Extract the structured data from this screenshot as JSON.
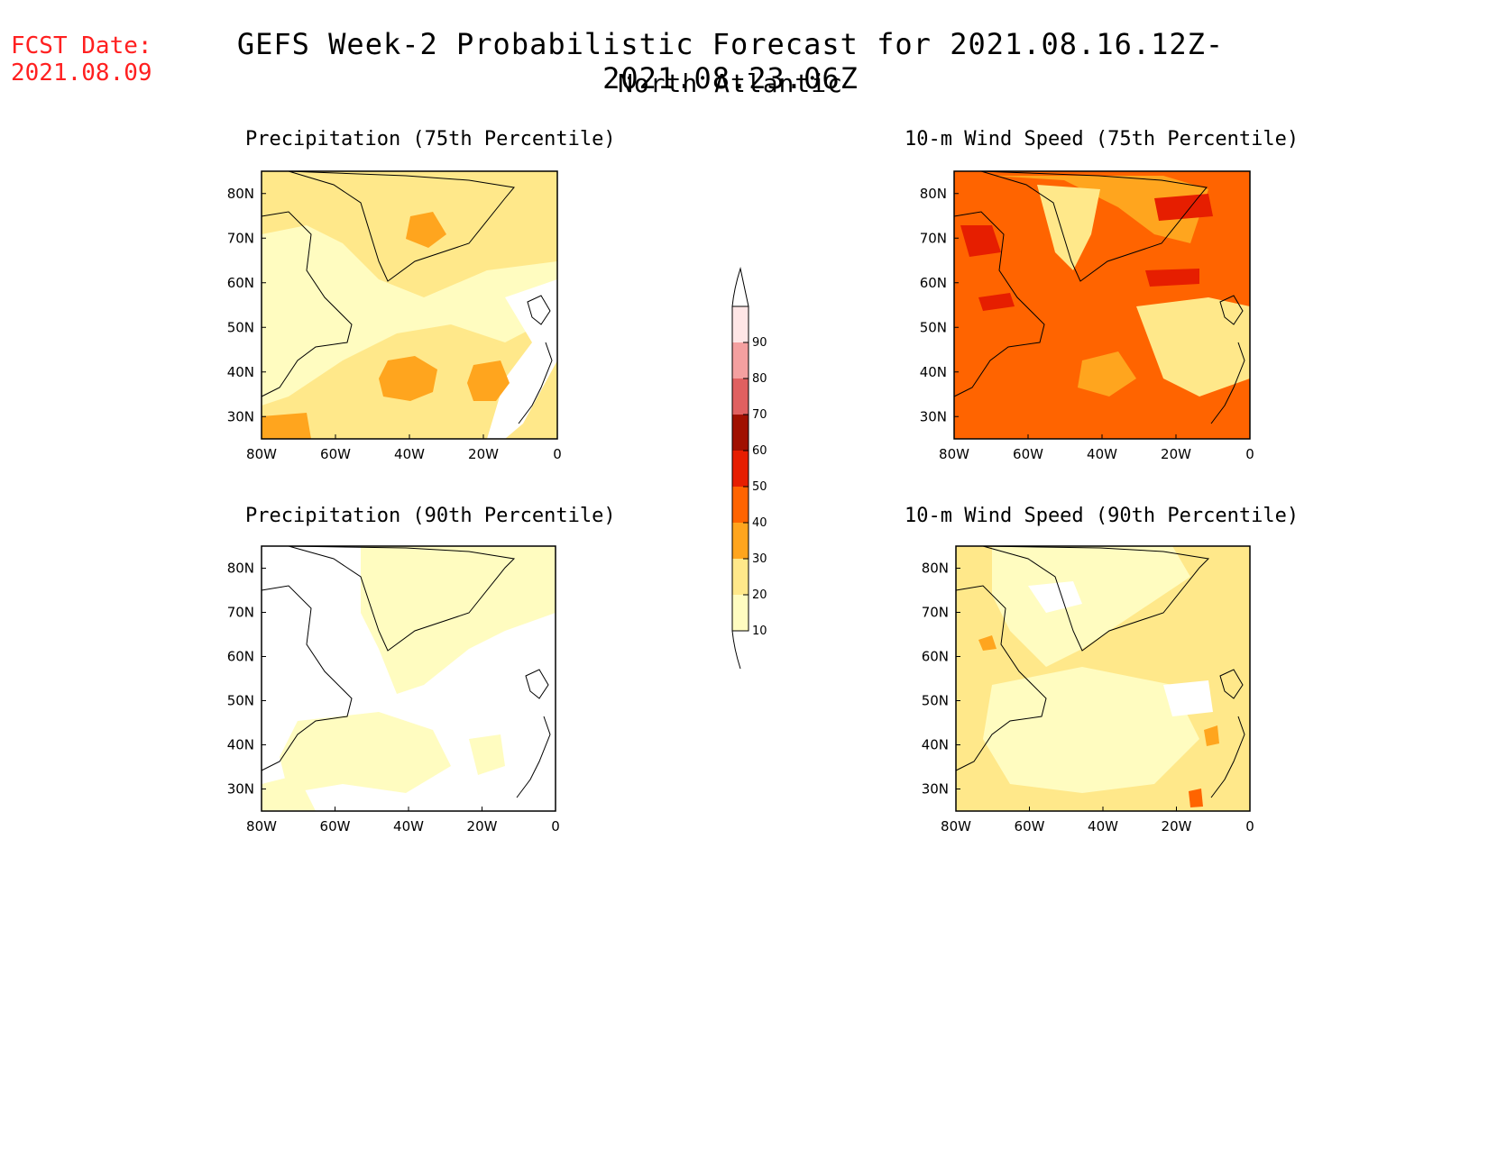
{
  "fcst_date": {
    "label": "FCST Date:",
    "value": "2021.08.09"
  },
  "title": "GEFS Week-2 Probabilistic Forecast for 2021.08.16.12Z-2021.08.23.06Z",
  "subtitle": "North Atlantic",
  "panels": [
    {
      "title": "Precipitation (75th Percentile)"
    },
    {
      "title": "10-m Wind Speed (75th Percentile)"
    },
    {
      "title": "Precipitation (90th Percentile)"
    },
    {
      "title": "10-m Wind Speed (90th Percentile)"
    }
  ],
  "axes": {
    "lon_labels": [
      "80W",
      "60W",
      "40W",
      "20W",
      "0"
    ],
    "lat_labels": [
      "80N",
      "70N",
      "60N",
      "50N",
      "40N",
      "30N"
    ]
  },
  "colorbar": {
    "labels": [
      "10",
      "20",
      "30",
      "40",
      "50",
      "60",
      "70",
      "80",
      "90"
    ],
    "colors": [
      "#fffcc0",
      "#ffe88a",
      "#ffa51e",
      "#ff6400",
      "#e61e00",
      "#a01000",
      "#e06060",
      "#f4a0a0",
      "#ffe6e6"
    ]
  },
  "colors": {
    "fcst": "#ff2020",
    "shade_lt": "#fffcc0",
    "shade_yl": "#ffe88a",
    "shade_or": "#ffa51e",
    "shade_do": "#ff6400",
    "shade_rd": "#e61e00",
    "shade_dr": "#a01000"
  }
}
